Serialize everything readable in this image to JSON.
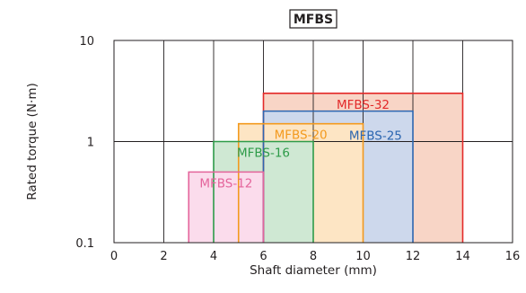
{
  "chart_data": {
    "type": "area",
    "title": "MFBS",
    "xlabel": "Shaft diameter (mm)",
    "ylabel": "Rated torque (N·m)",
    "xlim": [
      0,
      16
    ],
    "ylim": [
      0.1,
      10
    ],
    "y_scale": "log",
    "grid": true,
    "x_ticks": [
      "0",
      "2",
      "4",
      "6",
      "8",
      "10",
      "12",
      "14",
      "16"
    ],
    "y_ticks": [
      "0.1",
      "1",
      "10"
    ],
    "series": [
      {
        "name": "MFBS-12",
        "shaft_diameter_range": [
          3,
          6
        ],
        "rated_torque": 0.5,
        "color": "#e4649b",
        "fill": "#fbdcec"
      },
      {
        "name": "MFBS-16",
        "shaft_diameter_range": [
          4,
          8
        ],
        "rated_torque": 1.0,
        "color": "#2e9b49",
        "fill": "#cfe8d3"
      },
      {
        "name": "MFBS-20",
        "shaft_diameter_range": [
          5,
          10
        ],
        "rated_torque": 1.5,
        "color": "#f39a1e",
        "fill": "#fde5c4"
      },
      {
        "name": "MFBS-25",
        "shaft_diameter_range": [
          6,
          12
        ],
        "rated_torque": 2.0,
        "color": "#2c66b0",
        "fill": "#cdd8ec"
      },
      {
        "name": "MFBS-32",
        "shaft_diameter_range": [
          6,
          14
        ],
        "rated_torque": 3.0,
        "color": "#e32a2a",
        "fill": "#f8d5c6"
      }
    ]
  }
}
